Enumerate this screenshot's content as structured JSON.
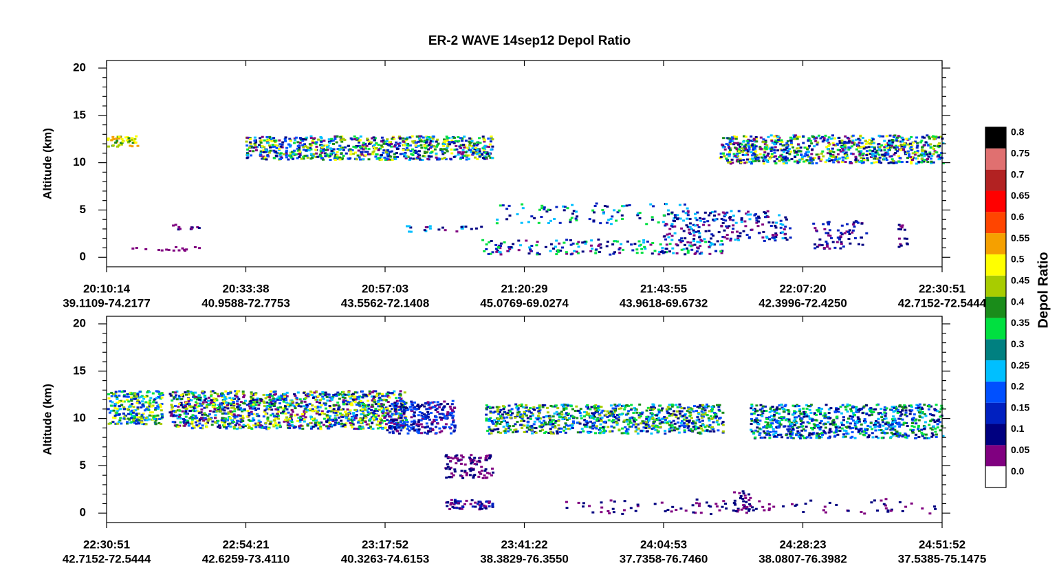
{
  "chart_data": {
    "type": "curtain",
    "title": "ER-2 WAVE 14sep12 Depol Ratio",
    "panels": [
      {
        "ylabel": "Altitude (km)",
        "ylim": [
          -1,
          20.8
        ],
        "yticks": [
          0,
          5,
          10,
          15,
          20
        ],
        "xticks": [
          {
            "time": "20:10:14",
            "location": "39.1109-74.2177"
          },
          {
            "time": "20:33:38",
            "location": "40.9588-72.7753"
          },
          {
            "time": "20:57:03",
            "location": "43.5562-72.1408"
          },
          {
            "time": "21:20:29",
            "location": "45.0769-69.0274"
          },
          {
            "time": "21:43:55",
            "location": "43.9618-69.6732"
          },
          {
            "time": "22:07:20",
            "location": "42.3996-72.4250"
          },
          {
            "time": "22:30:51",
            "location": "42.7152-72.5444"
          }
        ]
      },
      {
        "ylabel": "Altitude (km)",
        "ylim": [
          -1,
          20.8
        ],
        "yticks": [
          0,
          5,
          10,
          15,
          20
        ],
        "xticks": [
          {
            "time": "22:30:51",
            "location": "42.7152-72.5444"
          },
          {
            "time": "22:54:21",
            "location": "42.6259-73.4110"
          },
          {
            "time": "23:17:52",
            "location": "40.3263-74.6153"
          },
          {
            "time": "23:41:22",
            "location": "38.3829-76.3550"
          },
          {
            "time": "24:04:53",
            "location": "37.7358-76.7460"
          },
          {
            "time": "24:28:23",
            "location": "38.0807-76.3982"
          },
          {
            "time": "24:51:52",
            "location": "37.5385-75.1475"
          }
        ]
      }
    ],
    "colorbar": {
      "label": "Depol Ratio",
      "ticks": [
        {
          "value": 0,
          "label": "0.0"
        },
        0.05,
        0.1,
        0.15,
        0.2,
        0.25,
        0.3,
        0.35,
        0.4,
        0.45,
        0.5,
        0.55,
        0.6,
        0.65,
        0.7,
        0.75,
        0.8
      ],
      "colors": [
        "#ffffff",
        "#800080",
        "#000080",
        "#0020c0",
        "#0050ff",
        "#00bfff",
        "#008080",
        "#00e040",
        "#1a8c1a",
        "#a8cc00",
        "#ffff00",
        "#f5a000",
        "#ff4500",
        "#ff0000",
        "#b22222",
        "#e07070",
        "#000000"
      ]
    }
  }
}
